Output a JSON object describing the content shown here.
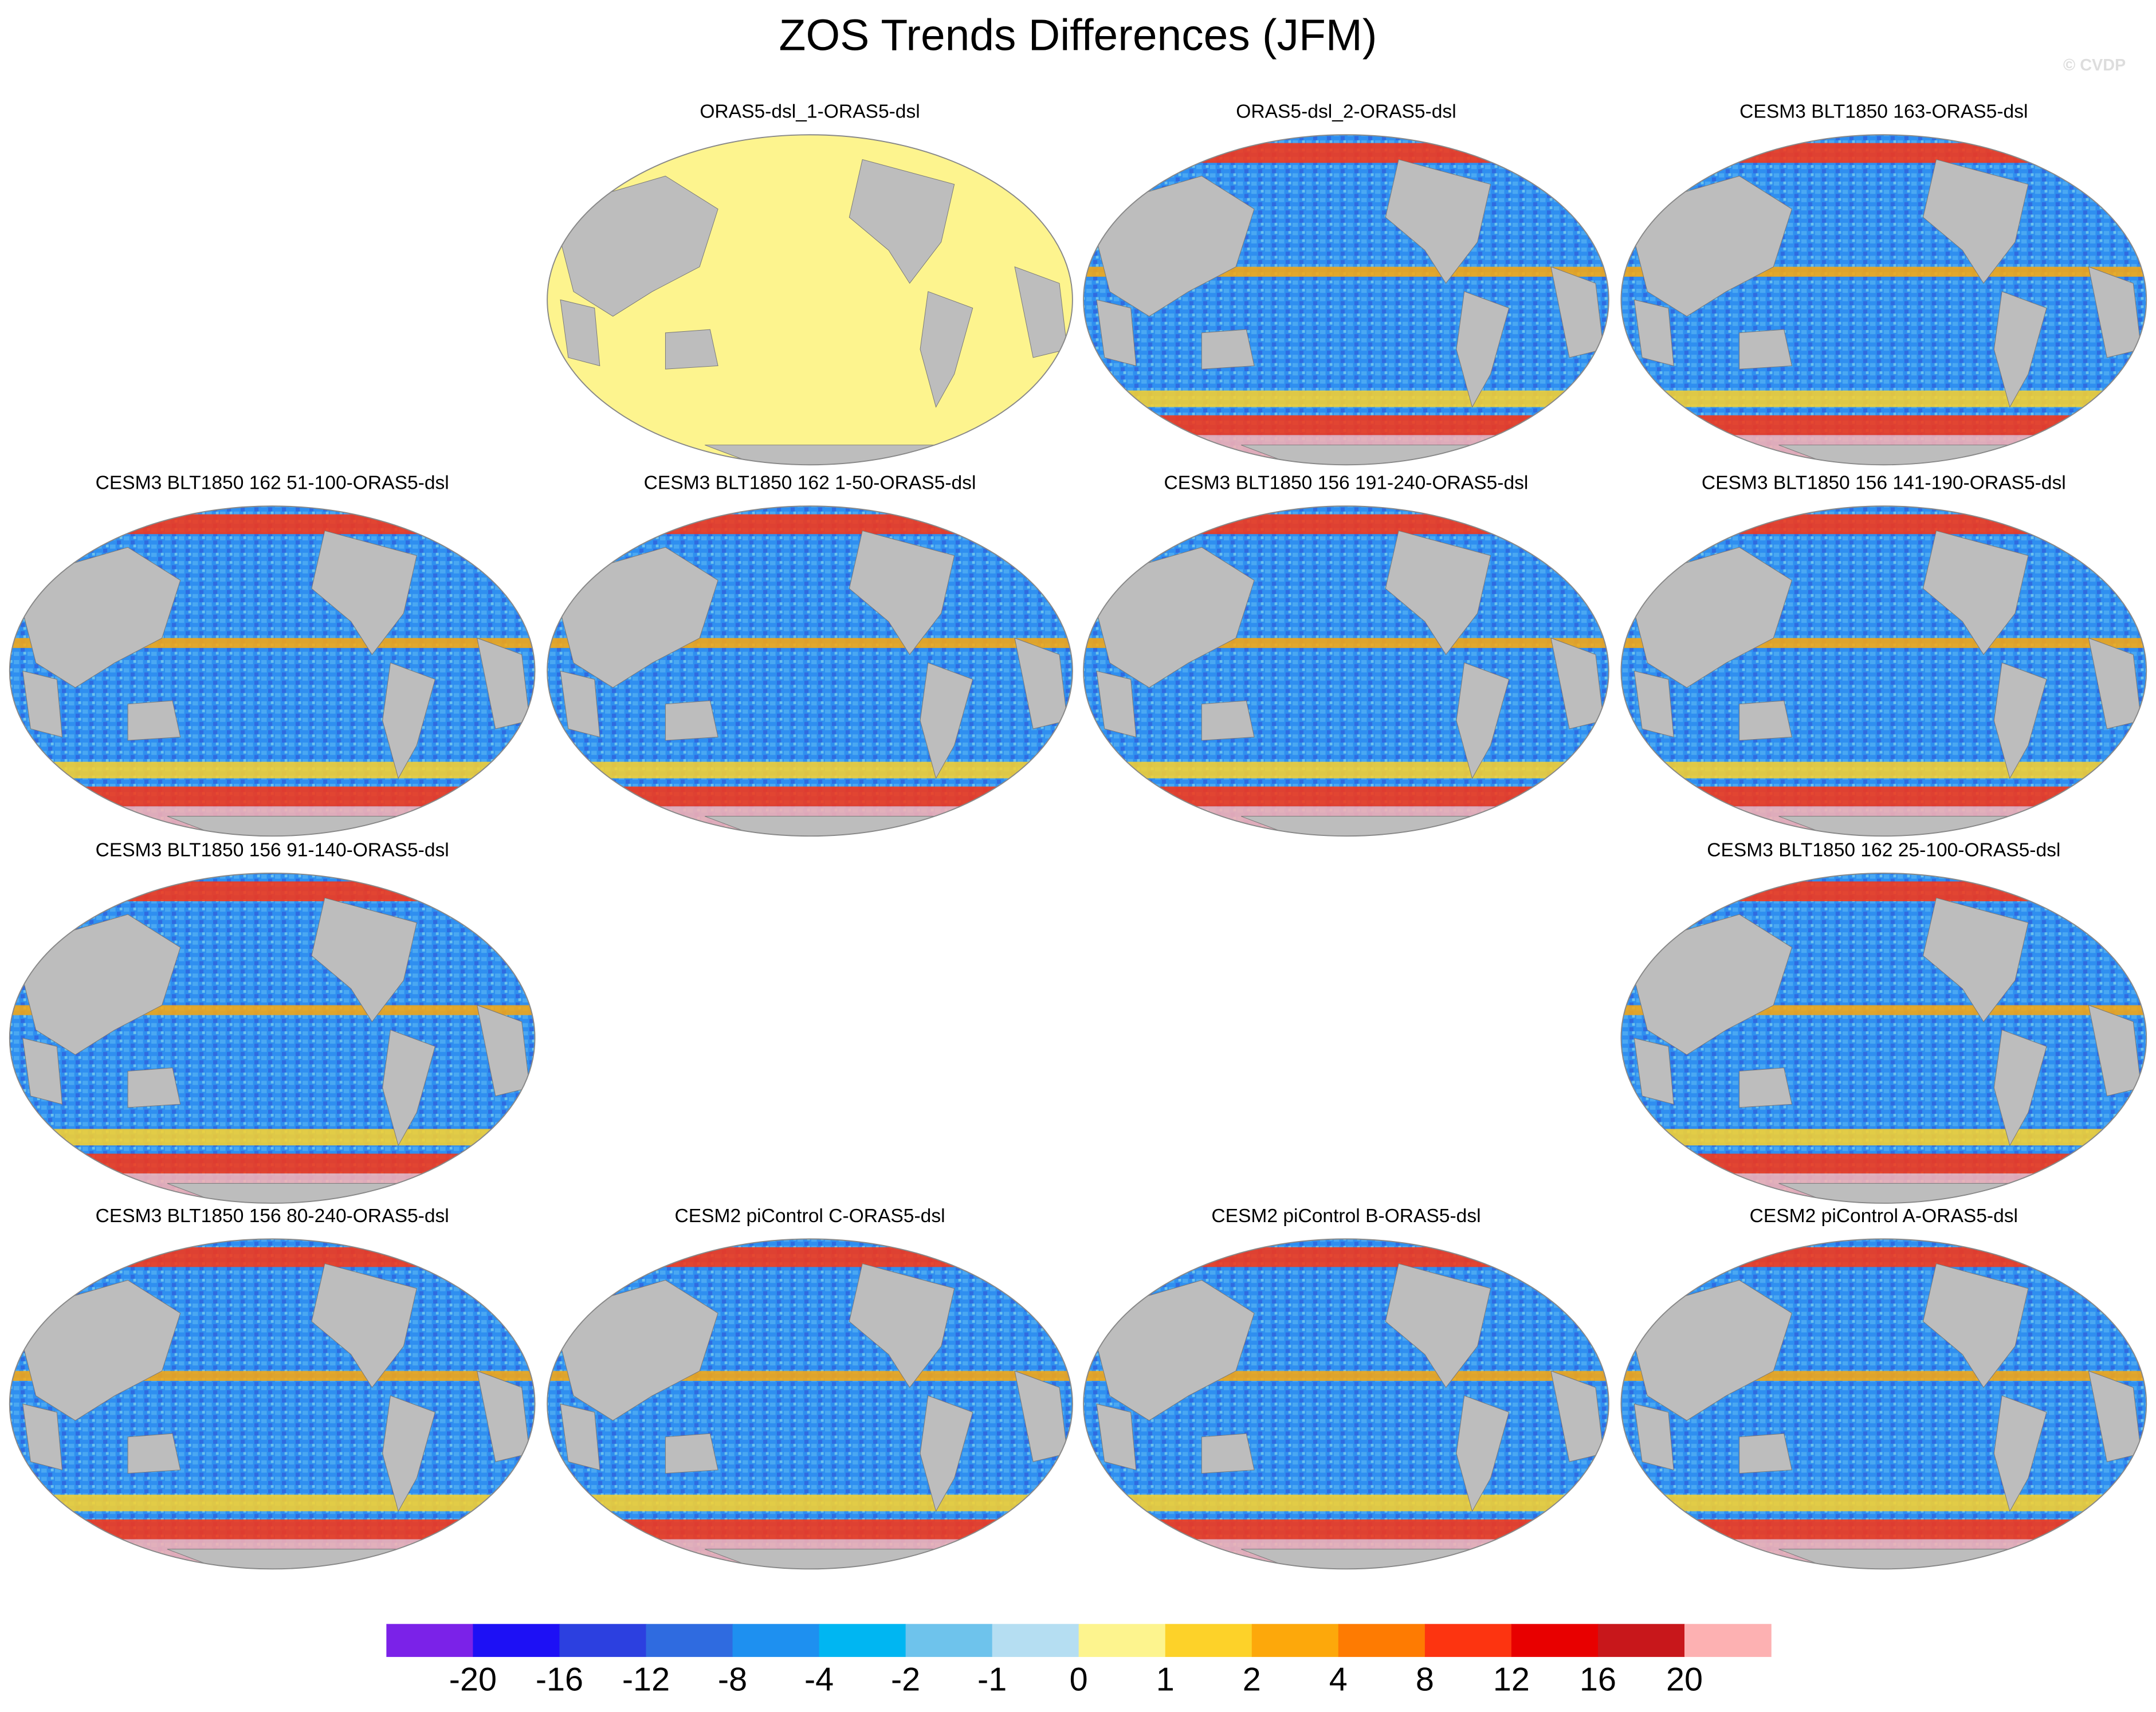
{
  "header": {
    "title": "ZOS Trends Differences (JFM)",
    "credit": "© CVDP"
  },
  "panels": {
    "rows": [
      [
        null,
        "ORAS5-dsl_1-ORAS5-dsl",
        "ORAS5-dsl_2-ORAS5-dsl",
        "CESM3 BLT1850 163-ORAS5-dsl"
      ],
      [
        "CESM3 BLT1850 162 51-100-ORAS5-dsl",
        "CESM3 BLT1850 162 1-50-ORAS5-dsl",
        "CESM3 BLT1850 156 191-240-ORAS5-dsl",
        "CESM3 BLT1850 156 141-190-ORAS5-dsl"
      ],
      [
        "CESM3 BLT1850 156 91-140-ORAS5-dsl",
        null,
        null,
        "CESM3 BLT1850 162 25-100-ORAS5-dsl"
      ],
      [
        "CESM3 BLT1850 156 80-240-ORAS5-dsl",
        "CESM2 piControl C-ORAS5-dsl",
        "CESM2 piControl B-ORAS5-dsl",
        "CESM2 piControl A-ORAS5-dsl"
      ]
    ]
  },
  "chart_data": {
    "type": "colorbar",
    "colors": [
      "#7b22e8",
      "#1d10f5",
      "#2c40e0",
      "#2f6be0",
      "#1e90f0",
      "#00b6f2",
      "#6ec3ec",
      "#b5def2",
      "#fdf48e",
      "#fdd229",
      "#fda80b",
      "#fe7b02",
      "#fd3410",
      "#e80000",
      "#c8171b",
      "#fdb1b2"
    ],
    "ticks": [
      -20,
      -16,
      -12,
      -8,
      -4,
      -2,
      -1,
      0,
      1,
      2,
      4,
      8,
      12,
      16,
      20
    ]
  }
}
